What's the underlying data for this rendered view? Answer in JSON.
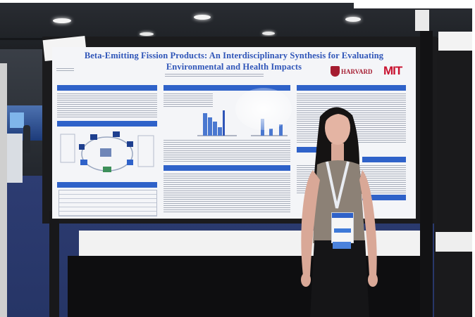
{
  "poster": {
    "title_line1": "Beta-Emitting Fission Products: An Interdisciplinary Synthesis for Evaluating",
    "title_line2": "Environmental and Health Impacts",
    "logos": [
      "HARVARD",
      "MIT"
    ]
  },
  "colors": {
    "ceiling": "#1e2126",
    "hall_floor": "#2c3d78",
    "booth_frame": "#1b1b1d",
    "poster_bg": "#f4f5f8",
    "section_header": "#2f62c9",
    "title_blue": "#2f55b8",
    "harvard_red": "#a51c30",
    "mit_red": "#c8102e",
    "table_cloth": "#0e0e10",
    "table_top": "#f2f2f2",
    "top_white_light": "#ffffff"
  },
  "icons": [
    "harvard-shield-icon",
    "ceiling-light-icon",
    "badge-icon"
  ]
}
